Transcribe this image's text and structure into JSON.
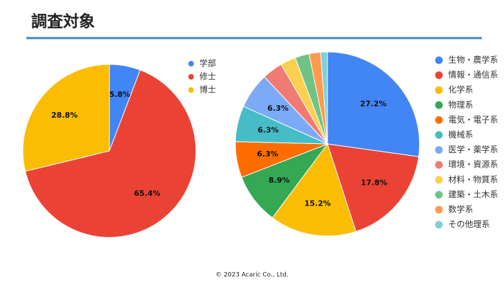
{
  "title": "調査対象",
  "footer": "© 2023 Acaric Co., Ltd.",
  "chart_data": [
    {
      "type": "pie",
      "categories": [
        "学部",
        "修士",
        "博士"
      ],
      "values": [
        5.8,
        65.4,
        28.8
      ],
      "value_labels": [
        "5.8%",
        "65.4%",
        "28.8%"
      ],
      "colors": [
        "#4285f4",
        "#ea4335",
        "#fbbc04"
      ],
      "legend": "right"
    },
    {
      "type": "pie",
      "categories": [
        "生物・農学系",
        "情報・通信系",
        "化学系",
        "物理系",
        "電気・電子系",
        "機械系",
        "医学・薬学系",
        "環境・資源系",
        "材料・物質系",
        "建築・土木系",
        "数学系",
        "その他理系"
      ],
      "values": [
        27.2,
        17.8,
        15.2,
        8.9,
        6.3,
        6.3,
        6.3,
        3.6,
        2.7,
        2.5,
        2.0,
        1.2
      ],
      "value_labels": [
        "27.2%",
        "17.8%",
        "15.2%",
        "8.9%",
        "6.3%",
        "6.3%",
        "6.3%",
        null,
        null,
        null,
        null,
        null
      ],
      "colors": [
        "#4285f4",
        "#ea4335",
        "#fbbc04",
        "#34a853",
        "#ff6d01",
        "#46bdc6",
        "#7baaf7",
        "#f07b72",
        "#fcd04f",
        "#71c287",
        "#ff994d",
        "#7ed1d7"
      ],
      "legend": "right"
    }
  ]
}
